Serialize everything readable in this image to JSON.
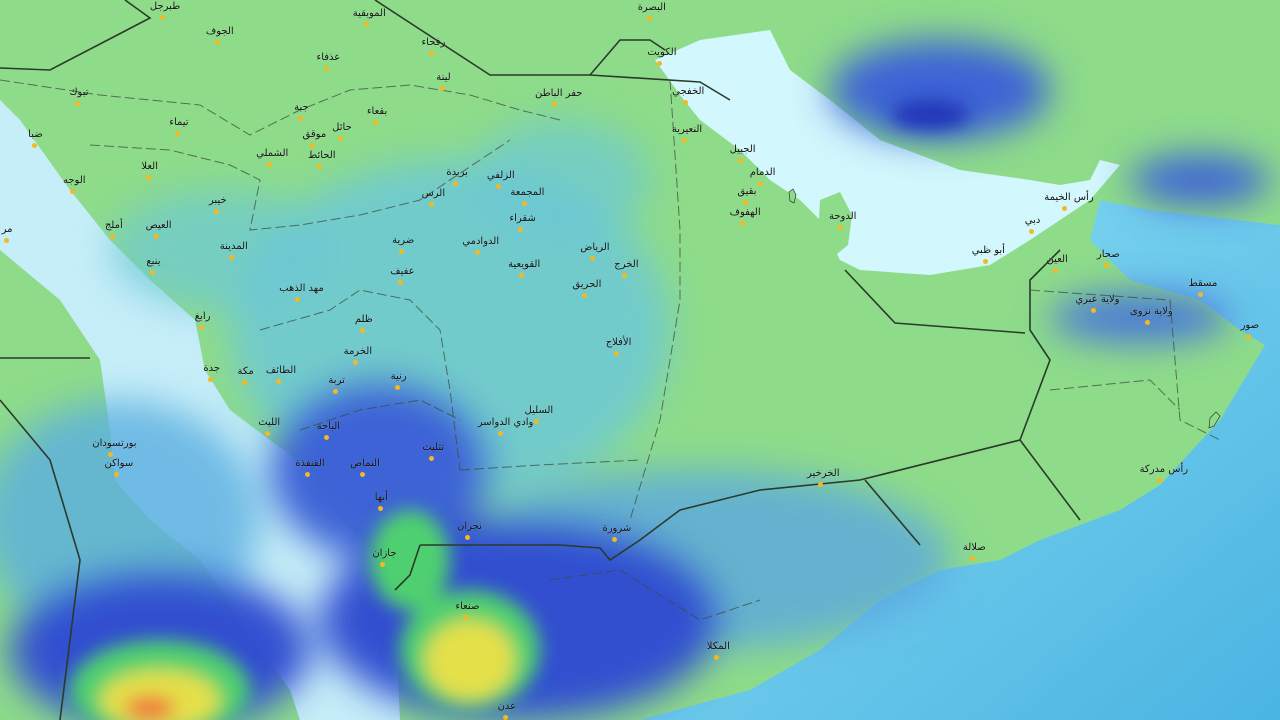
{
  "map": {
    "colors": {
      "land": "#8edc8a",
      "gulf_water": "#d2f7fc",
      "red_sea": "#c6eef8",
      "arabian_sea": "#55bde6",
      "rain_light": "#6cc8d6",
      "rain_moderate": "#3d63d6",
      "rain_heavy": "#2436b8",
      "rain_green": "#4fd070",
      "rain_yellow": "#e4e048",
      "rain_orange": "#f0a040",
      "city_dot": "#f5b820",
      "border": "#2b3a2b"
    },
    "cities": [
      "طبرجل",
      "الجوف",
      "الموبقية",
      "رفحاء",
      "عذفاء",
      "لينة",
      "تبوك",
      "جبة",
      "بقعاء",
      "حائل",
      "موقق",
      "تيماء",
      "ضبا",
      "الشملي",
      "الحائط",
      "العلا",
      "الوجه",
      "خيبر",
      "أملج",
      "العيص",
      "المدينة",
      "ينبع",
      "مر",
      "بريدة",
      "الرس",
      "ضرية",
      "عفيف",
      "الزلفي",
      "المجمعة",
      "شقراء",
      "الدوادمي",
      "القويعية",
      "الرياض",
      "الخرج",
      "الحريق",
      "حفر الباطن",
      "البصرة",
      "الكويت",
      "الخفجي",
      "النعيرية",
      "الجبيل",
      "الدمام",
      "بقيق",
      "الهفوف",
      "مهد الذهب",
      "ظلم",
      "الخرمة",
      "تربة",
      "رنية",
      "رابغ",
      "جدة",
      "مكة",
      "الطائف",
      "الليث",
      "الباحة",
      "بورتسودان",
      "سواكن",
      "القنفذة",
      "النماص",
      "تثليث",
      "أبها",
      "نجران",
      "جازان",
      "الأفلاج",
      "السليل",
      "وادي الدواسر",
      "شرورة",
      "الخرخير",
      "الدوحة",
      "دبي",
      "رأس الخيمة",
      "أبو ظبي",
      "العين",
      "صحار",
      "مسقط",
      "ولاية عبري",
      "ولاية نزوى",
      "صور",
      "رأس مدركة",
      "صلالة",
      "صنعاء",
      "المكلا",
      "عدن"
    ]
  }
}
